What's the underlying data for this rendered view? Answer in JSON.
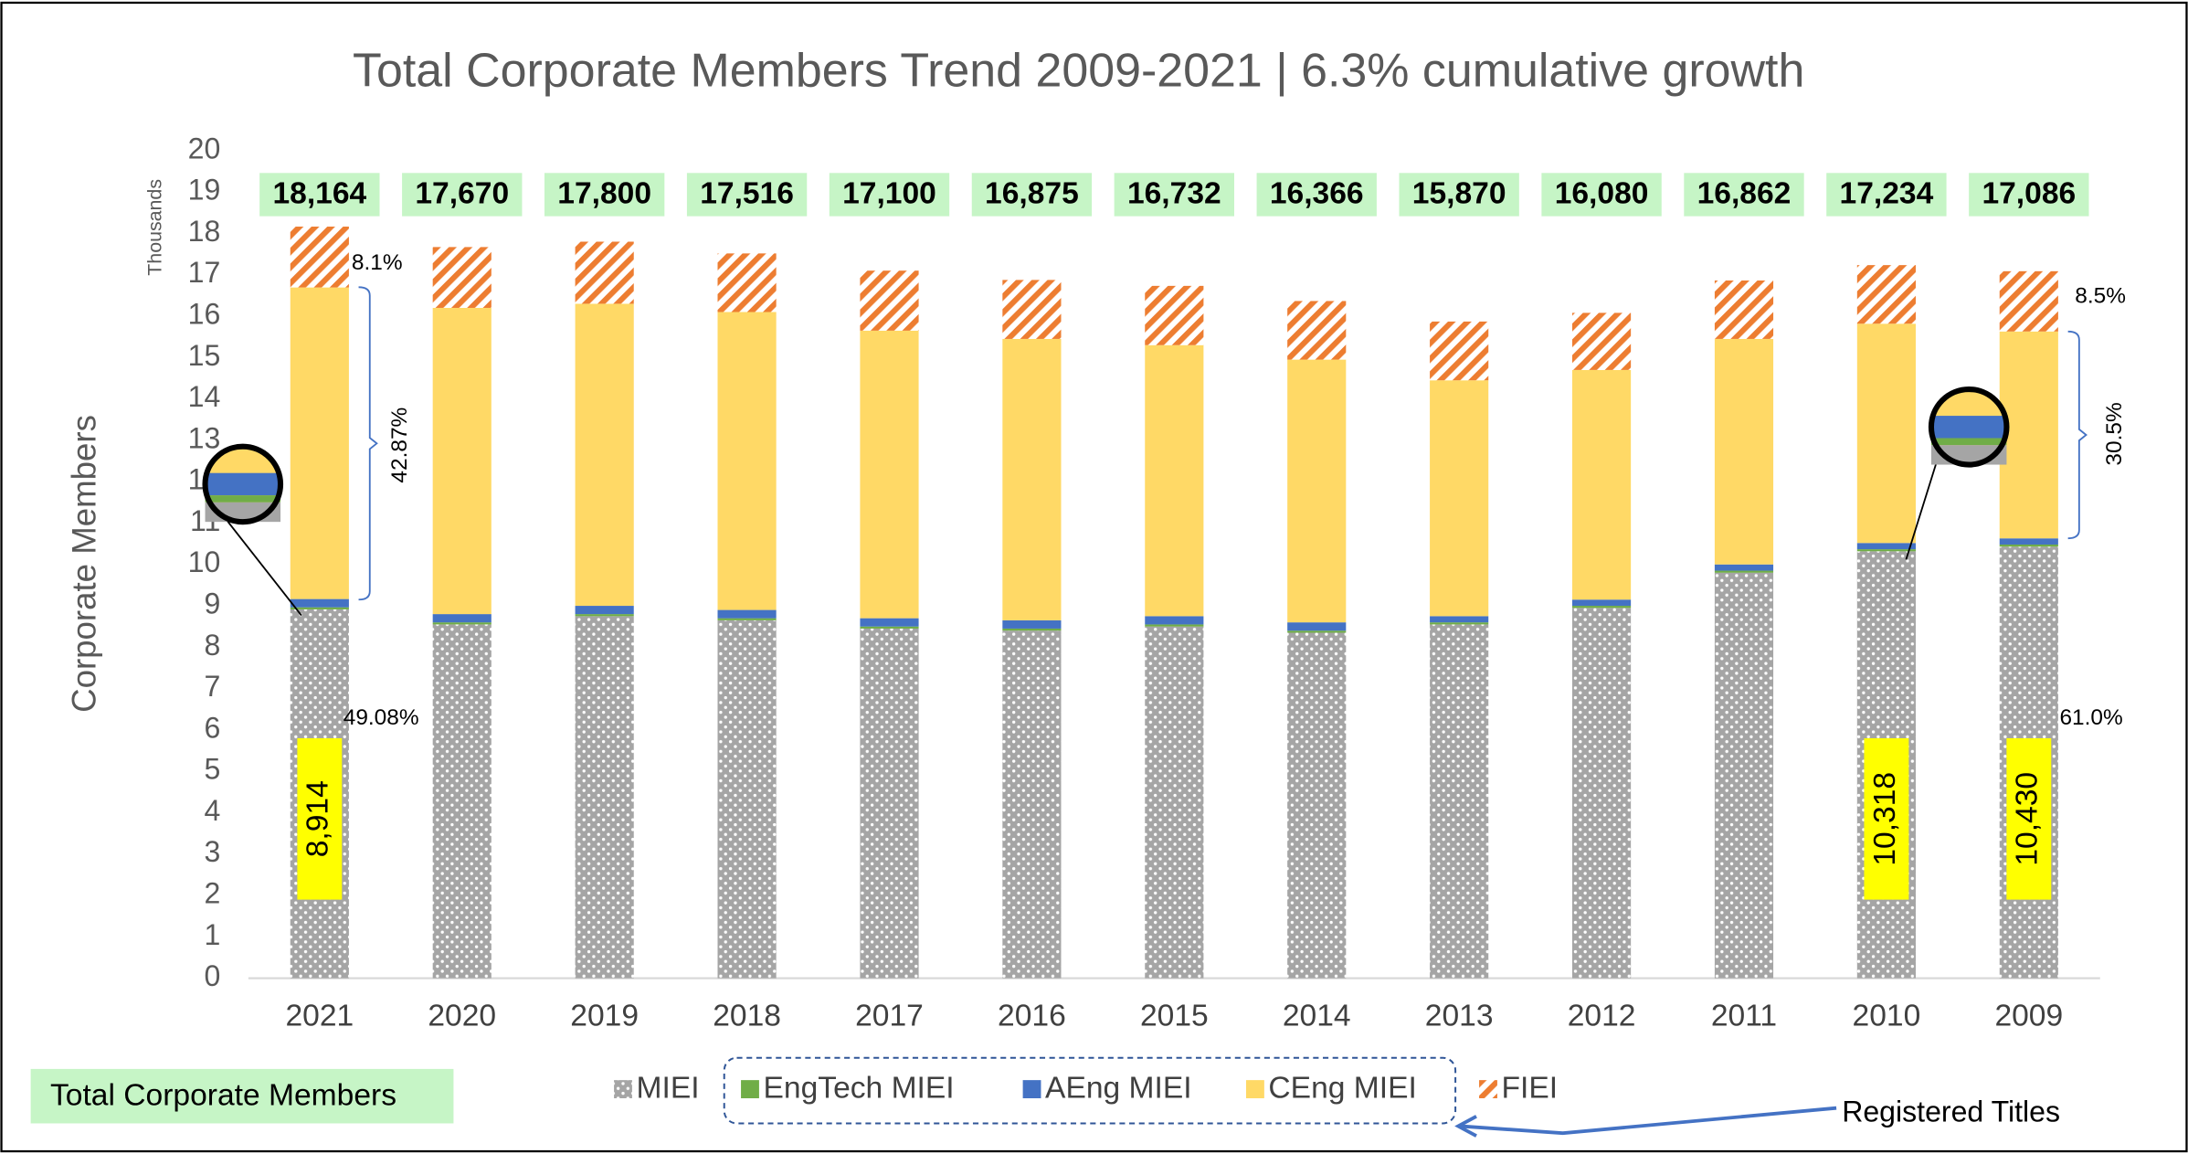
{
  "chart_data": {
    "type": "stacked_bar",
    "title": "Total Corporate Members Trend 2009-2021 | 6.3% cumulative growth",
    "y_label": "Corporate Members",
    "y_unit_label": "Thousands",
    "categories": [
      "2021",
      "2020",
      "2019",
      "2018",
      "2017",
      "2016",
      "2015",
      "2014",
      "2013",
      "2012",
      "2011",
      "2010",
      "2009"
    ],
    "ylim": [
      0,
      20
    ],
    "yticks": [
      0,
      1,
      2,
      3,
      4,
      5,
      6,
      7,
      8,
      9,
      10,
      11,
      12,
      13,
      14,
      15,
      16,
      17,
      18,
      19,
      20
    ],
    "grid": false,
    "series": [
      {
        "name": "MIEI",
        "color": "#a5a5a5",
        "hatch": "dots",
        "values": [
          8.914,
          8.55,
          8.75,
          8.65,
          8.45,
          8.4,
          8.5,
          8.35,
          8.55,
          8.95,
          9.8,
          10.318,
          10.43
        ],
        "value_labels": [
          "8,914",
          null,
          null,
          null,
          null,
          null,
          null,
          null,
          null,
          null,
          null,
          "10,318",
          "10,430"
        ]
      },
      {
        "name": "EngTech MIEI",
        "color": "#70ad47",
        "values": [
          0.05,
          0.05,
          0.05,
          0.05,
          0.05,
          0.05,
          0.05,
          0.05,
          0.05,
          0.05,
          0.05,
          0.05,
          0.05
        ]
      },
      {
        "name": "AEng MIEI",
        "color": "#4472c4",
        "values": [
          0.2,
          0.2,
          0.2,
          0.2,
          0.2,
          0.2,
          0.2,
          0.2,
          0.15,
          0.15,
          0.15,
          0.15,
          0.15
        ]
      },
      {
        "name": "CEng MIEI",
        "color": "#ffd966",
        "values": [
          7.53,
          7.4,
          7.3,
          7.2,
          6.95,
          6.8,
          6.55,
          6.35,
          5.7,
          5.55,
          5.45,
          5.3,
          5.0
        ]
      },
      {
        "name": "FIEI",
        "color": "#ed7d31",
        "hatch": "diagonal",
        "values": [
          1.47,
          1.47,
          1.5,
          1.416,
          1.45,
          1.425,
          1.432,
          1.416,
          1.42,
          1.38,
          1.412,
          1.416,
          1.456
        ]
      }
    ],
    "totals": {
      "name": "Total Corporate Members",
      "color": "#c6f5c6",
      "values": [
        18.164,
        17.67,
        17.8,
        17.516,
        17.1,
        16.875,
        16.732,
        16.366,
        15.87,
        16.08,
        16.862,
        17.234,
        17.086
      ],
      "value_labels": [
        "18,164",
        "17,670",
        "17,800",
        "17,516",
        "17,100",
        "16,875",
        "16,732",
        "16,366",
        "15,870",
        "16,080",
        "16,862",
        "17,234",
        "17,086"
      ]
    },
    "annotations": [
      "8.1%",
      "42.87%",
      "49.08%",
      "8.5%",
      "30.5%",
      "61.0%",
      "Registered Titles"
    ]
  }
}
